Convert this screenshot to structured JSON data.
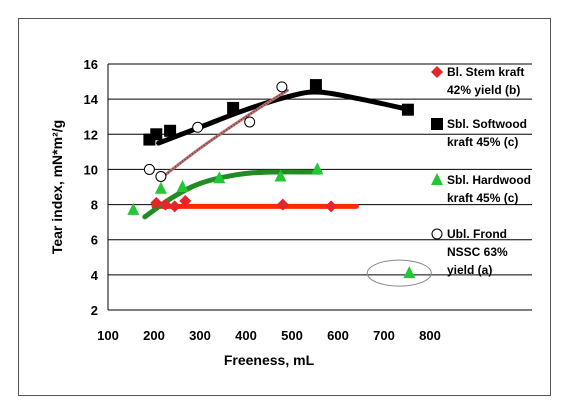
{
  "chart_data": {
    "type": "scatter",
    "title": "",
    "xlabel": "Freeness, mL",
    "ylabel": "Tear index, mN*m²/g",
    "xlim": [
      100,
      800
    ],
    "ylim": [
      2,
      16
    ],
    "x_ticks": [
      100,
      200,
      300,
      400,
      500,
      600,
      700,
      800
    ],
    "y_ticks": [
      2,
      4,
      6,
      8,
      10,
      12,
      14,
      16
    ],
    "grid": "horizontal",
    "legend_position": "right",
    "series": [
      {
        "name": "Bl. Stem kraft 42% yield (b)",
        "legend_lines": [
          "Bl. Stem kraft",
          "42% yield (b)"
        ],
        "marker": "diamond",
        "color": "#e3262b",
        "points": [
          [
            205,
            8.1
          ],
          [
            225,
            8.0
          ],
          [
            245,
            7.9
          ],
          [
            268,
            8.2
          ],
          [
            480,
            8.0
          ],
          [
            585,
            7.9
          ]
        ],
        "fit": [
          [
            200,
            7.9
          ],
          [
            640,
            7.9
          ]
        ],
        "fit_color": "#ff2a00"
      },
      {
        "name": "Sbl. Softwood kraft 45% (c)",
        "legend_lines": [
          "Sbl. Softwood",
          "kraft 45% (c)"
        ],
        "marker": "square",
        "color": "#000000",
        "points": [
          [
            190,
            11.7
          ],
          [
            205,
            12.0
          ],
          [
            235,
            12.2
          ],
          [
            372,
            13.5
          ],
          [
            552,
            14.8
          ],
          [
            752,
            13.4
          ]
        ],
        "fit": [
          [
            210,
            11.5
          ],
          [
            300,
            12.4
          ],
          [
            400,
            13.4
          ],
          [
            500,
            14.2
          ],
          [
            560,
            14.4
          ],
          [
            650,
            14.0
          ],
          [
            755,
            13.4
          ]
        ],
        "fit_color": "#000000"
      },
      {
        "name": "Sbl. Hardwood kraft 45% (c)",
        "legend_lines": [
          "Sbl. Hardwood",
          "kraft 45% (c)"
        ],
        "marker": "triangle",
        "color": "#22c736",
        "points": [
          [
            155,
            7.7
          ],
          [
            215,
            8.9
          ],
          [
            262,
            9.0
          ],
          [
            342,
            9.5
          ],
          [
            475,
            9.6
          ],
          [
            555,
            10.0
          ],
          [
            755,
            4.1
          ]
        ],
        "fit": [
          [
            180,
            7.3
          ],
          [
            240,
            8.4
          ],
          [
            300,
            9.2
          ],
          [
            380,
            9.7
          ],
          [
            450,
            9.85
          ],
          [
            560,
            9.85
          ]
        ],
        "fit_color": "#228b22"
      },
      {
        "name": "Ubl. Frond NSSC 63% yield (a)",
        "legend_lines": [
          "Ubl. Frond",
          "NSSC 63%",
          "yield (a)"
        ],
        "marker": "circle-open",
        "color": "#000000",
        "points": [
          [
            190,
            10.0
          ],
          [
            215,
            9.6
          ],
          [
            295,
            12.4
          ],
          [
            408,
            12.7
          ],
          [
            478,
            14.7
          ]
        ],
        "fit": [
          [
            210,
            9.4
          ],
          [
            300,
            11.2
          ],
          [
            400,
            13.0
          ],
          [
            490,
            14.5
          ]
        ],
        "fit_color": "#c06f6f"
      }
    ],
    "annotation": {
      "type": "ellipse",
      "around_x": 755,
      "around_y": 4.1
    }
  }
}
